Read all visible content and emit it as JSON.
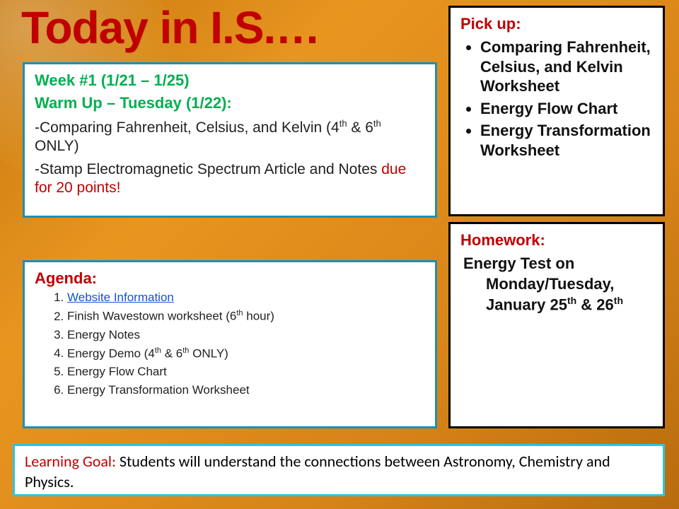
{
  "title": "Today in I.S.…",
  "warmup": {
    "week": "Week #1 (1/21 – 1/25)",
    "header": "Warm Up – Tuesday (1/22):",
    "line1_a": "-Comparing Fahrenheit, Celsius, and Kelvin (4",
    "line1_sup1": "th",
    "line1_b": " & 6",
    "line1_sup2": "th",
    "line1_c": " ONLY)",
    "line2_a": "-Stamp Electromagnetic Spectrum Article and Notes ",
    "line2_red": "due for 20 points!"
  },
  "agenda": {
    "header": "Agenda:",
    "items": [
      {
        "text": "Website Information",
        "link": true
      },
      {
        "text_a": "Finish Wavestown worksheet (6",
        "sup": "th",
        "text_b": " hour)"
      },
      {
        "text": "Energy Notes"
      },
      {
        "text_a": "Energy Demo (4",
        "sup": "th",
        "text_b": " & 6",
        "sup2": "th",
        "text_c": " ONLY)"
      },
      {
        "text": "Energy Flow Chart"
      },
      {
        "text": "Energy Transformation Worksheet"
      }
    ]
  },
  "pickup": {
    "header": "Pick up:",
    "items": [
      "Comparing Fahrenheit, Celsius, and Kelvin Worksheet",
      "Energy Flow Chart",
      "Energy Transformation Worksheet"
    ]
  },
  "homework": {
    "header": "Homework:",
    "body_a": "Energy Test on Monday/Tuesday, January 25",
    "sup1": "th",
    "body_b": " & 26",
    "sup2": "th"
  },
  "goal": {
    "label": "Learning Goal:",
    "text": " Students will understand the connections between Astronomy, Chemistry and Physics."
  },
  "colors": {
    "title": "#c00000",
    "box_border_blue": "#1f8fb3",
    "box_border_black": "#000000",
    "goal_border": "#29c5e6",
    "green": "#00b050",
    "link": "#1155cc",
    "bg_gradient_from": "#c7790f",
    "bg_gradient_to": "#e89520"
  }
}
